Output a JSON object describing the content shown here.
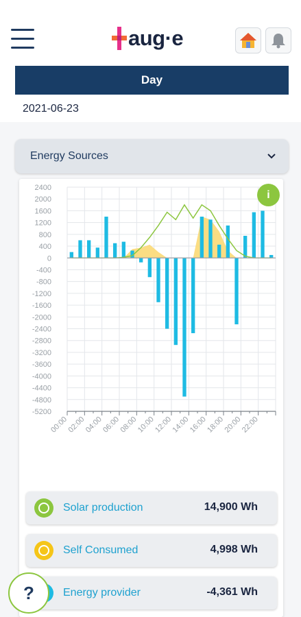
{
  "header": {
    "logo_text": "aug·e",
    "home_icon": "house-icon",
    "bell_icon": "bell-icon"
  },
  "period": {
    "label": "Day"
  },
  "date": "2021-06-23",
  "dropdown": {
    "selected": "Energy Sources"
  },
  "info_badge": "i",
  "help_badge": "?",
  "colors": {
    "navy": "#183d66",
    "bar": "#1ebbe3",
    "area": "#fbd975",
    "line": "#8cc63f",
    "grid": "#e3e6ea"
  },
  "chart_data": {
    "type": "bar",
    "ylim": [
      -5200,
      2400
    ],
    "yticks": [
      "2400",
      "2000",
      "1600",
      "1200",
      "800",
      "400",
      "0",
      "-400",
      "-800",
      "-1200",
      "-1600",
      "-2000",
      "-2400",
      "-2800",
      "-3200",
      "-3600",
      "-4000",
      "-4400",
      "-4800",
      "-5200"
    ],
    "xticks": [
      "00:00",
      "02:00",
      "04:00",
      "06:00",
      "08:00",
      "10:00",
      "12:00",
      "14:00",
      "16:00",
      "18:00",
      "20:00",
      "22:00"
    ],
    "x": [
      "00:00",
      "01:00",
      "02:00",
      "03:00",
      "04:00",
      "05:00",
      "06:00",
      "07:00",
      "08:00",
      "09:00",
      "10:00",
      "11:00",
      "12:00",
      "13:00",
      "14:00",
      "15:00",
      "16:00",
      "17:00",
      "18:00",
      "19:00",
      "20:00",
      "21:00",
      "22:00",
      "23:00"
    ],
    "series": [
      {
        "values": [
          200,
          600,
          600,
          350,
          1400,
          500,
          550,
          250,
          -150,
          -650,
          -1500,
          -2400,
          -2950,
          -4700,
          -2550,
          1400,
          1300,
          450,
          1100,
          -2250,
          750,
          1550,
          1600,
          100
        ]
      },
      {
        "values": [
          0,
          0,
          0,
          0,
          0,
          0,
          0,
          300,
          350,
          450,
          200,
          0,
          0,
          0,
          0,
          1400,
          1300,
          900,
          250,
          0,
          0,
          0,
          0,
          0
        ]
      },
      {
        "values": [
          0,
          0,
          0,
          0,
          0,
          0,
          20,
          80,
          350,
          700,
          1100,
          1550,
          1300,
          1800,
          1350,
          1800,
          1600,
          1100,
          650,
          250,
          60,
          0,
          0,
          0
        ]
      }
    ]
  },
  "stats": [
    {
      "label": "Solar production",
      "value": "14,900 Wh",
      "icon": "solar-panel-icon",
      "color": "#8cc63f"
    },
    {
      "label": "Self Consumed",
      "value": "4,998 Wh",
      "icon": "self-consumption-icon",
      "color": "#f5c518"
    },
    {
      "label": "Energy provider",
      "value": "-4,361 Wh",
      "icon": "grid-provider-icon",
      "color": "#1ebbe3"
    }
  ]
}
